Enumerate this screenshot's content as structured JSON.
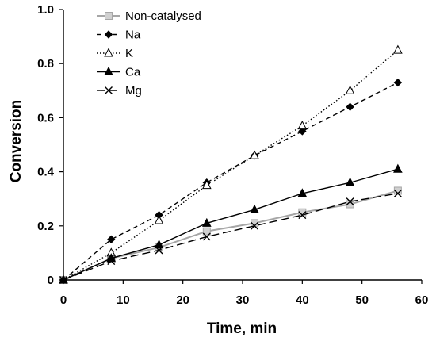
{
  "chart_data": {
    "type": "line",
    "title": "",
    "xlabel": "Time, min",
    "ylabel": "Conversion",
    "xlim": [
      0,
      60
    ],
    "ylim": [
      0,
      1.0
    ],
    "x_ticks": [
      "0",
      "10",
      "20",
      "30",
      "40",
      "50",
      "60"
    ],
    "y_ticks": [
      "0",
      "0.2",
      "0.4",
      "0.6",
      "0.8",
      "1.0"
    ],
    "grid": false,
    "legend_position": "top-left",
    "x": [
      0,
      8,
      16,
      24,
      32,
      40,
      48,
      56
    ],
    "series": [
      {
        "name": "Non-catalysed",
        "values": [
          0,
          0.08,
          0.12,
          0.18,
          0.21,
          0.25,
          0.28,
          0.33
        ],
        "color": "#a6a6a6",
        "marker": "square",
        "line_style": "solid"
      },
      {
        "name": "Na",
        "values": [
          0,
          0.15,
          0.24,
          0.36,
          0.46,
          0.55,
          0.64,
          0.73
        ],
        "color": "#000000",
        "marker": "diamond",
        "line_style": "dashed"
      },
      {
        "name": "K",
        "values": [
          0,
          0.1,
          0.22,
          0.35,
          0.46,
          0.57,
          0.7,
          0.85
        ],
        "color": "#000000",
        "marker": "open-triangle",
        "line_style": "dotted"
      },
      {
        "name": "Ca",
        "values": [
          0,
          0.08,
          0.13,
          0.21,
          0.26,
          0.32,
          0.36,
          0.41
        ],
        "color": "#000000",
        "marker": "triangle",
        "line_style": "solid"
      },
      {
        "name": "Mg",
        "values": [
          0,
          0.07,
          0.11,
          0.16,
          0.2,
          0.24,
          0.29,
          0.32
        ],
        "color": "#000000",
        "marker": "x",
        "line_style": "long-dashed"
      }
    ]
  }
}
